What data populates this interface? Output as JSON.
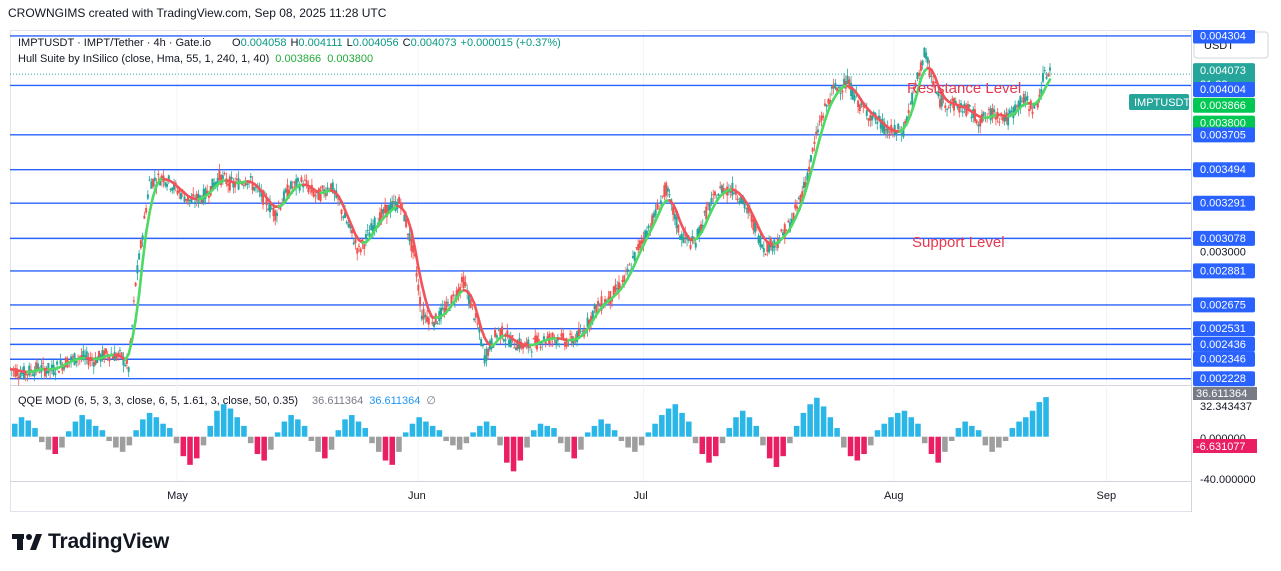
{
  "header": {
    "caption": "CROWNGIMS created with TradingView.com, Sep 08, 2025 11:28 UTC"
  },
  "legend": {
    "symbol_line": "IMPTUSDT · IMPT/Tether · 4h · Gate.io",
    "o_label": "O",
    "o_value": "0.004058",
    "h_label": "H",
    "h_value": "0.004111",
    "l_label": "L",
    "l_value": "0.004056",
    "c_label": "C",
    "c_value": "0.004073",
    "change": "+0.000015 (+0.37%)",
    "hull_label": "Hull Suite by InSilico (close, Hma, 55, 1, 240, 1, 40)",
    "hull_v1": "0.003866",
    "hull_v2": "0.003800"
  },
  "qqe_legend": {
    "label": "QQE MOD (6, 5, 3, 3, close, 6, 5, 1.61, 3, close, 50, 0.35)",
    "v1": "36.611364",
    "v2": "36.611364",
    "empty_symbol": "∅"
  },
  "annotations": {
    "resistance": "Resistance Level",
    "support": "Support Level"
  },
  "axis": {
    "currency": "USDT",
    "symbol_tag": "IMPTUSDT",
    "countdown": "31:22",
    "price_labels": [
      "0.004304",
      "0.004073",
      "0.004004",
      "0.003866",
      "0.003800",
      "0.003705",
      "0.003494",
      "0.003291",
      "0.003078",
      "0.003000",
      "0.002881",
      "0.002675",
      "0.002531",
      "0.002436",
      "0.002346",
      "0.002228"
    ],
    "qqe_labels": [
      "36.611364",
      "32.343437",
      "0.000000",
      "-6.631077",
      "-40.000000"
    ],
    "months": [
      "May",
      "Jun",
      "Jul",
      "Aug",
      "Sep"
    ]
  },
  "colors": {
    "level_line": "#2962ff",
    "hull_up": "#4cd964",
    "hull_down": "#f2525a",
    "qqe_blue": "#2bb6e8",
    "qqe_gray": "#9e9e9e",
    "qqe_red": "#e91e63",
    "current_price_tag": "#26a69a",
    "resistance_text": "#e53950",
    "support_text": "#e53950"
  },
  "chart_data": {
    "type": "line",
    "ylim": [
      0.00219,
      0.00434
    ],
    "horizontal_levels": [
      0.004304,
      0.004004,
      0.003705,
      0.003494,
      0.003291,
      0.003078,
      0.002881,
      0.002675,
      0.002531,
      0.002436,
      0.002346,
      0.002228
    ],
    "current_price": 0.004073,
    "price_path": [
      [
        0,
        0.00229
      ],
      [
        4,
        0.00226
      ],
      [
        8,
        0.00229
      ],
      [
        12,
        0.00228
      ],
      [
        16,
        0.00233
      ],
      [
        20,
        0.00236
      ],
      [
        24,
        0.00234
      ],
      [
        28,
        0.00238
      ],
      [
        32,
        0.00236
      ],
      [
        34,
        0.00229
      ],
      [
        36,
        0.0028
      ],
      [
        40,
        0.00342
      ],
      [
        44,
        0.00345
      ],
      [
        48,
        0.00337
      ],
      [
        52,
        0.0033
      ],
      [
        56,
        0.00334
      ],
      [
        60,
        0.00345
      ],
      [
        64,
        0.0034
      ],
      [
        68,
        0.00344
      ],
      [
        72,
        0.00334
      ],
      [
        76,
        0.00323
      ],
      [
        80,
        0.00338
      ],
      [
        84,
        0.00342
      ],
      [
        88,
        0.00333
      ],
      [
        92,
        0.0034
      ],
      [
        96,
        0.0032
      ],
      [
        100,
        0.003
      ],
      [
        104,
        0.00315
      ],
      [
        108,
        0.00325
      ],
      [
        112,
        0.0033
      ],
      [
        116,
        0.00295
      ],
      [
        118,
        0.00262
      ],
      [
        122,
        0.00258
      ],
      [
        126,
        0.00268
      ],
      [
        130,
        0.00282
      ],
      [
        134,
        0.00255
      ],
      [
        136,
        0.00236
      ],
      [
        140,
        0.00252
      ],
      [
        144,
        0.00245
      ],
      [
        148,
        0.00242
      ],
      [
        152,
        0.00246
      ],
      [
        156,
        0.00248
      ],
      [
        160,
        0.00245
      ],
      [
        164,
        0.0025
      ],
      [
        168,
        0.00266
      ],
      [
        172,
        0.00272
      ],
      [
        176,
        0.00282
      ],
      [
        180,
        0.00302
      ],
      [
        184,
        0.00318
      ],
      [
        188,
        0.00338
      ],
      [
        192,
        0.0031
      ],
      [
        196,
        0.00304
      ],
      [
        200,
        0.00326
      ],
      [
        204,
        0.00338
      ],
      [
        208,
        0.00337
      ],
      [
        212,
        0.00322
      ],
      [
        216,
        0.00302
      ],
      [
        220,
        0.00306
      ],
      [
        224,
        0.00318
      ],
      [
        228,
        0.00342
      ],
      [
        232,
        0.00378
      ],
      [
        236,
        0.00398
      ],
      [
        240,
        0.00402
      ],
      [
        244,
        0.00387
      ],
      [
        248,
        0.0038
      ],
      [
        252,
        0.00372
      ],
      [
        256,
        0.00373
      ],
      [
        260,
        0.00404
      ],
      [
        262,
        0.0042
      ],
      [
        266,
        0.00392
      ],
      [
        270,
        0.00389
      ],
      [
        274,
        0.00386
      ],
      [
        278,
        0.00379
      ],
      [
        282,
        0.00384
      ],
      [
        286,
        0.0038
      ],
      [
        290,
        0.00392
      ],
      [
        294,
        0.00386
      ],
      [
        296,
        0.00404
      ],
      [
        298,
        0.0041
      ]
    ],
    "qqe_ylim": [
      -40,
      45
    ],
    "qqe_histogram": [
      12,
      18,
      15,
      8,
      -5,
      -12,
      -16,
      -10,
      5,
      14,
      20,
      16,
      10,
      6,
      -4,
      -10,
      -14,
      -8,
      6,
      16,
      22,
      18,
      12,
      8,
      -6,
      -18,
      -26,
      -20,
      -8,
      10,
      24,
      30,
      26,
      18,
      10,
      -6,
      -16,
      -22,
      -12,
      4,
      14,
      20,
      16,
      10,
      -4,
      -14,
      -20,
      -12,
      6,
      16,
      20,
      14,
      8,
      -6,
      -14,
      -22,
      -26,
      -14,
      4,
      12,
      18,
      14,
      10,
      6,
      -4,
      -8,
      -12,
      -6,
      4,
      10,
      14,
      10,
      -8,
      -24,
      -32,
      -22,
      -10,
      6,
      12,
      10,
      8,
      -6,
      -14,
      -20,
      -12,
      4,
      10,
      16,
      12,
      6,
      -4,
      -10,
      -14,
      -8,
      4,
      12,
      20,
      26,
      30,
      22,
      14,
      -6,
      -16,
      -24,
      -18,
      -6,
      8,
      18,
      24,
      18,
      10,
      -8,
      -20,
      -28,
      -18,
      -6,
      10,
      22,
      30,
      36,
      28,
      18,
      8,
      -10,
      -18,
      -22,
      -16,
      -8,
      6,
      12,
      18,
      22,
      24,
      18,
      12,
      -6,
      -16,
      -24,
      -14,
      -4,
      8,
      14,
      10,
      6,
      -8,
      -14,
      -10,
      -4,
      8,
      14,
      18,
      24,
      32,
      36.6
    ]
  }
}
